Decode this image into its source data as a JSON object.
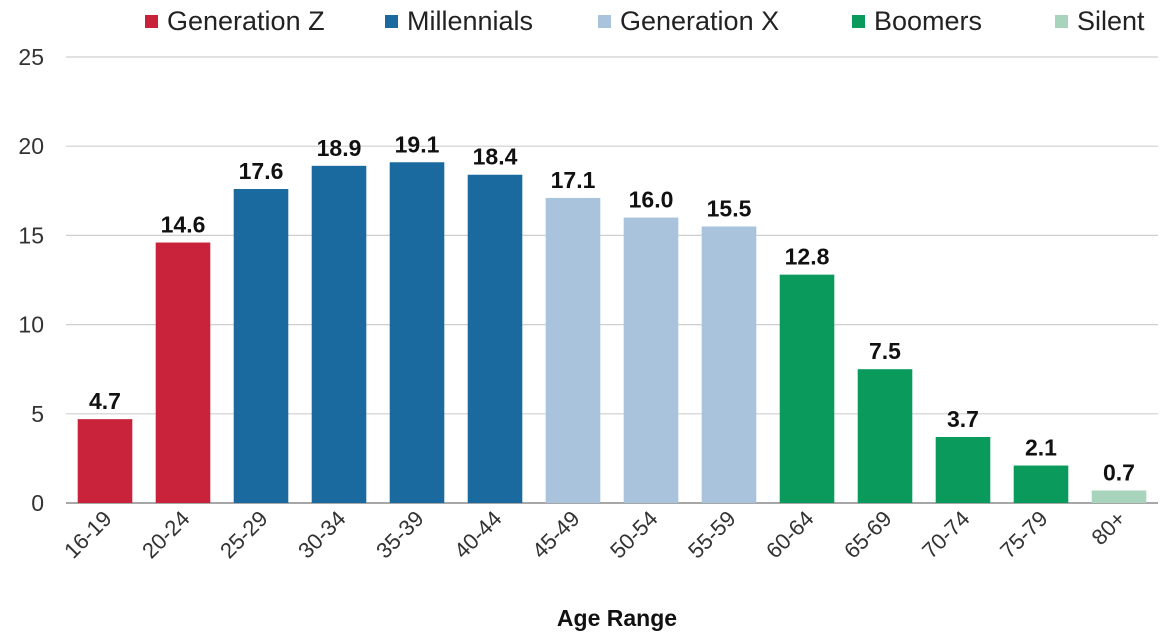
{
  "chart_data": {
    "type": "bar",
    "title": "",
    "xlabel": "Age Range",
    "ylabel": "",
    "ylim": [
      0,
      25
    ],
    "yticks": [
      0,
      5,
      10,
      15,
      20,
      25
    ],
    "grid": true,
    "legend_position": "top",
    "categories": [
      "16-19",
      "20-24",
      "25-29",
      "30-34",
      "35-39",
      "40-44",
      "45-49",
      "50-54",
      "55-59",
      "60-64",
      "65-69",
      "70-74",
      "75-79",
      "80+"
    ],
    "values": [
      4.7,
      14.6,
      17.6,
      18.9,
      19.1,
      18.4,
      17.1,
      16.0,
      15.5,
      12.8,
      7.5,
      3.7,
      2.1,
      0.7
    ],
    "data_labels": [
      "4.7",
      "14.6",
      "17.6",
      "18.9",
      "19.1",
      "18.4",
      "17.1",
      "16.0",
      "15.5",
      "12.8",
      "7.5",
      "3.7",
      "2.1",
      "0.7"
    ],
    "groups": [
      "Generation Z",
      "Generation Z",
      "Millennials",
      "Millennials",
      "Millennials",
      "Millennials",
      "Generation X",
      "Generation X",
      "Generation X",
      "Boomers",
      "Boomers",
      "Boomers",
      "Boomers",
      "Silent"
    ],
    "legend": [
      {
        "name": "Generation Z",
        "color": "#c8233a"
      },
      {
        "name": "Millennials",
        "color": "#1a6aa0"
      },
      {
        "name": "Generation X",
        "color": "#a9c3dc"
      },
      {
        "name": "Boomers",
        "color": "#0a9a5c"
      },
      {
        "name": "Silent",
        "color": "#a8d3bc"
      }
    ]
  }
}
